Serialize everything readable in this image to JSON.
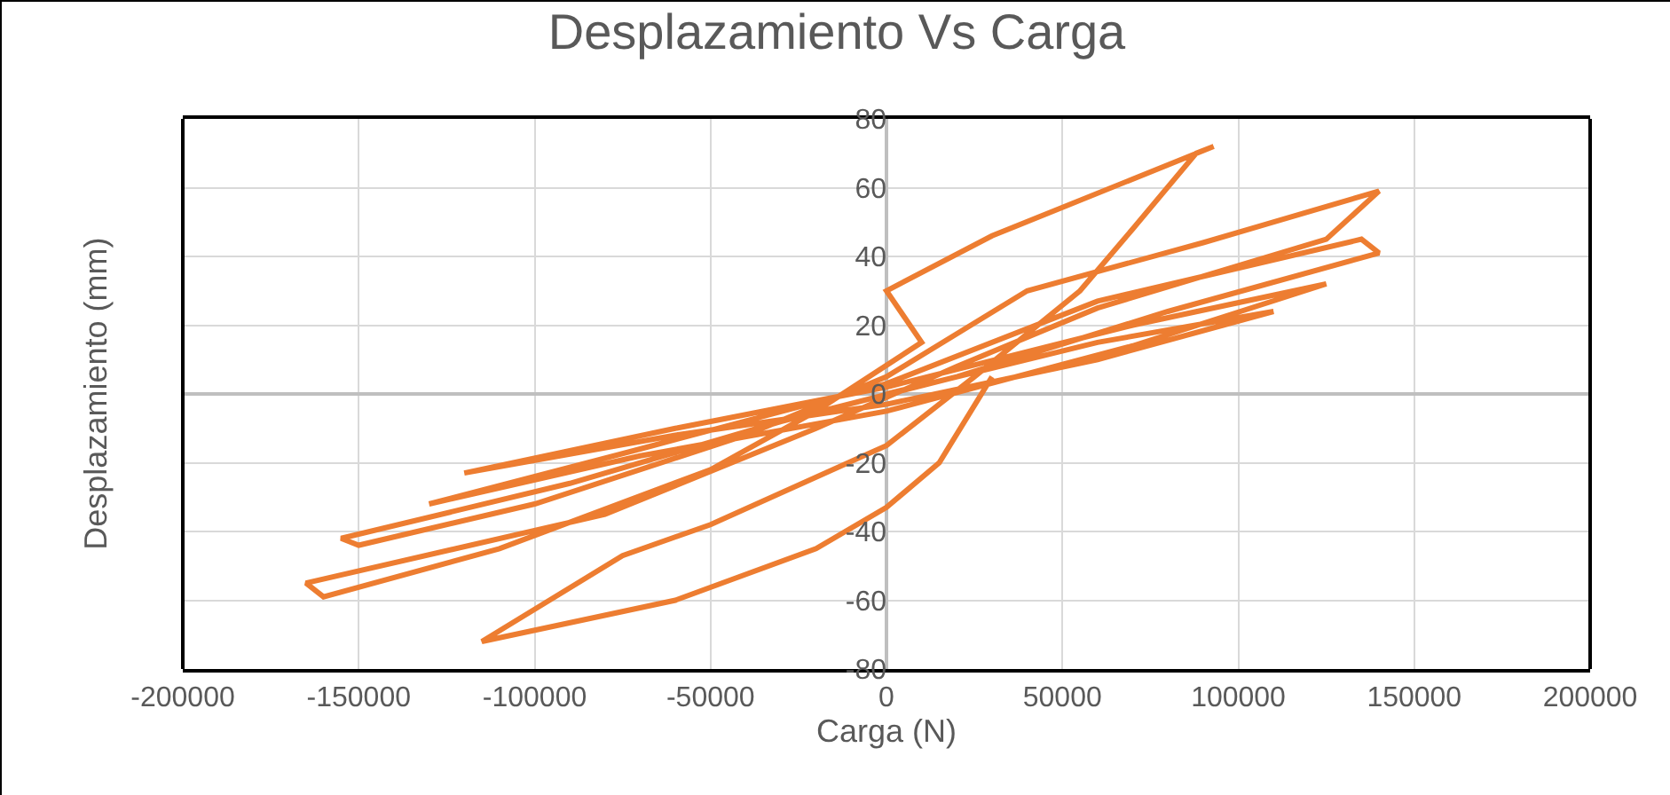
{
  "chart_data": {
    "type": "line",
    "title": "Desplazamiento Vs Carga",
    "xlabel": "Carga (N)",
    "ylabel": "Desplazamiento (mm)",
    "xlim": [
      -200000,
      200000
    ],
    "xticks": [
      -200000,
      -150000,
      -100000,
      -50000,
      0,
      50000,
      100000,
      150000,
      200000
    ],
    "ylim": [
      -80,
      80
    ],
    "yticks": [
      -80,
      -60,
      -40,
      -20,
      0,
      20,
      40,
      60,
      80
    ],
    "grid": true,
    "marker": "none",
    "line_style": "solid",
    "series": [
      {
        "color": "#ed7d31",
        "x": [
          0,
          60000,
          110000,
          60000,
          0,
          -60000,
          -120000,
          -60000,
          0,
          70000,
          125000,
          70000,
          0,
          -70000,
          -130000,
          -70000,
          0,
          60000,
          135000,
          140000,
          80000,
          20000,
          -30000,
          -90000,
          -155000,
          -150000,
          -100000,
          -40000,
          0,
          40000,
          90000,
          140000,
          125000,
          60000,
          20000,
          -20000,
          -80000,
          -165000,
          -160000,
          -110000,
          -50000,
          -20000,
          10000,
          0,
          30000,
          93000,
          88000,
          70000,
          55000,
          25000,
          0,
          -50000,
          -75000,
          -115000,
          -60000,
          -20000,
          0,
          15000,
          30000
        ],
        "values": [
          0,
          15,
          24,
          10,
          -3,
          -12,
          -23,
          -10,
          2,
          20,
          32,
          14,
          -5,
          -18,
          -32,
          -16,
          3,
          27,
          45,
          41,
          24,
          5,
          -8,
          -26,
          -42,
          -44,
          -32,
          -12,
          5,
          30,
          44,
          59,
          45,
          25,
          8,
          -10,
          -35,
          -55,
          -59,
          -45,
          -22,
          -5,
          15,
          30,
          46,
          72,
          70,
          48,
          30,
          5,
          -15,
          -38,
          -47,
          -72,
          -60,
          -45,
          -33,
          -20,
          5
        ]
      }
    ]
  }
}
